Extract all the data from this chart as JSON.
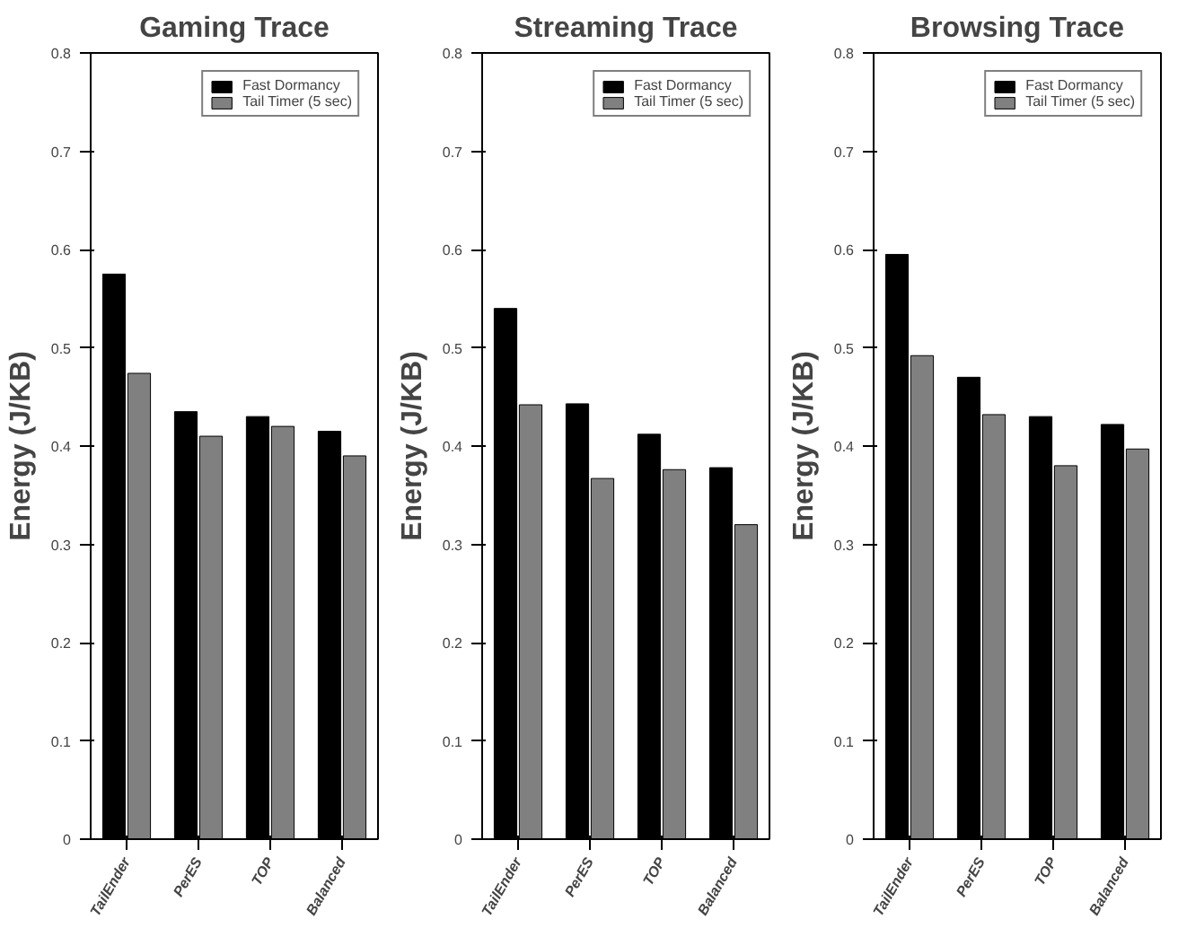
{
  "chart_data": [
    {
      "type": "bar",
      "title": "Gaming Trace",
      "ylabel": "Energy (J/KB)",
      "categories": [
        "TailEnder",
        "PerES",
        "TOP",
        "Balanced"
      ],
      "series": [
        {
          "name": "Fast Dormancy",
          "color": "#000000",
          "values": [
            0.575,
            0.435,
            0.43,
            0.415
          ]
        },
        {
          "name": "Tail Timer (5 sec)",
          "color": "#808080",
          "values": [
            0.474,
            0.41,
            0.42,
            0.39
          ]
        }
      ],
      "ylim": [
        0,
        0.8
      ],
      "yticks": [
        0,
        0.1,
        0.2,
        0.3,
        0.4,
        0.5,
        0.6,
        0.7,
        0.8
      ],
      "legend": "top right",
      "grid": false
    },
    {
      "type": "bar",
      "title": "Streaming Trace",
      "ylabel": "Energy (J/KB)",
      "categories": [
        "TailEnder",
        "PerES",
        "TOP",
        "Balanced"
      ],
      "series": [
        {
          "name": "Fast Dormancy",
          "color": "#000000",
          "values": [
            0.54,
            0.443,
            0.412,
            0.378
          ]
        },
        {
          "name": "Tail Timer (5 sec)",
          "color": "#808080",
          "values": [
            0.442,
            0.367,
            0.376,
            0.32
          ]
        }
      ],
      "ylim": [
        0,
        0.8
      ],
      "yticks": [
        0,
        0.1,
        0.2,
        0.3,
        0.4,
        0.5,
        0.6,
        0.7,
        0.8
      ],
      "legend": "top right",
      "grid": false
    },
    {
      "type": "bar",
      "title": "Browsing Trace",
      "ylabel": "Energy (J/KB)",
      "categories": [
        "TailEnder",
        "PerES",
        "TOP",
        "Balanced"
      ],
      "series": [
        {
          "name": "Fast Dormancy",
          "color": "#000000",
          "values": [
            0.595,
            0.47,
            0.43,
            0.422
          ]
        },
        {
          "name": "Tail Timer (5 sec)",
          "color": "#808080",
          "values": [
            0.492,
            0.432,
            0.38,
            0.397
          ]
        }
      ],
      "ylim": [
        0,
        0.8
      ],
      "yticks": [
        0,
        0.1,
        0.2,
        0.3,
        0.4,
        0.5,
        0.6,
        0.7,
        0.8
      ],
      "legend": "top right",
      "grid": false
    }
  ]
}
